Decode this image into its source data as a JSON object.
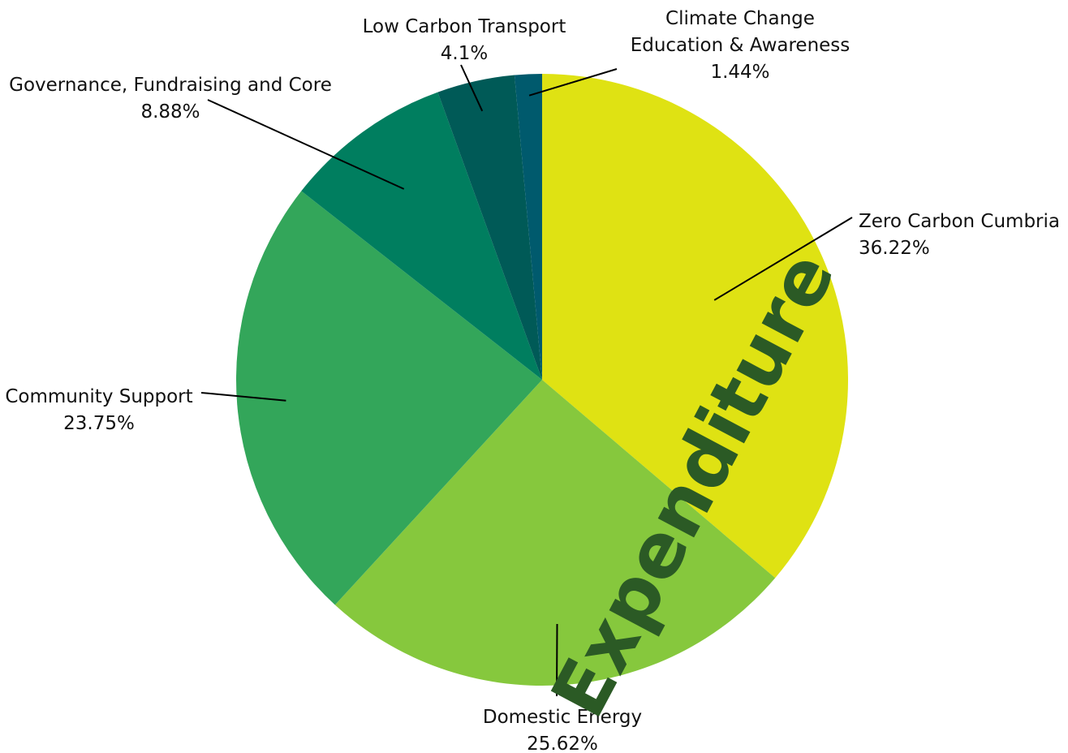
{
  "chart_data": {
    "type": "pie",
    "title": "Expenditure",
    "start_angle_deg": 0,
    "direction": "clockwise",
    "slices": [
      {
        "label": "Zero Carbon Cumbria",
        "value": 36.22,
        "value_label": "36.22%",
        "color": "#dfe213"
      },
      {
        "label": "Domestic Energy",
        "value": 25.62,
        "value_label": "25.62%",
        "color": "#86c83d"
      },
      {
        "label": "Community Support",
        "value": 23.75,
        "value_label": "23.75%",
        "color": "#33a65a"
      },
      {
        "label": "Governance, Fundraising and Core",
        "value": 8.88,
        "value_label": "8.88%",
        "color": "#007e5f"
      },
      {
        "label": "Low Carbon Transport",
        "value": 4.1,
        "value_label": "4.1%",
        "color": "#005a57"
      },
      {
        "label": "Climate Change\nEducation & Awareness",
        "value": 1.44,
        "value_label": "1.44%",
        "color": "#005a6d"
      }
    ],
    "legend": "none"
  }
}
